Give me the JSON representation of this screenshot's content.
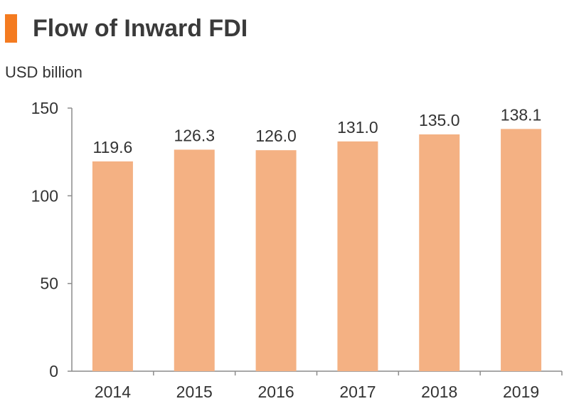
{
  "header": {
    "title": "Flow of Inward FDI"
  },
  "chart_data": {
    "type": "bar",
    "title": "Flow of Inward FDI",
    "ylabel": "USD billion",
    "xlabel": "",
    "categories": [
      "2014",
      "2015",
      "2016",
      "2017",
      "2018",
      "2019"
    ],
    "values": [
      119.6,
      126.3,
      126.0,
      131.0,
      135.0,
      138.1
    ],
    "value_labels": [
      "119.6",
      "126.3",
      "126.0",
      "131.0",
      "135.0",
      "138.1"
    ],
    "ylim": [
      0,
      150
    ],
    "yticks": [
      0,
      50,
      100,
      150
    ],
    "grid": false,
    "legend": "none",
    "colors": {
      "bar": "#f4b183",
      "axis": "#8c8c8c",
      "accent": "#f47b20"
    }
  }
}
